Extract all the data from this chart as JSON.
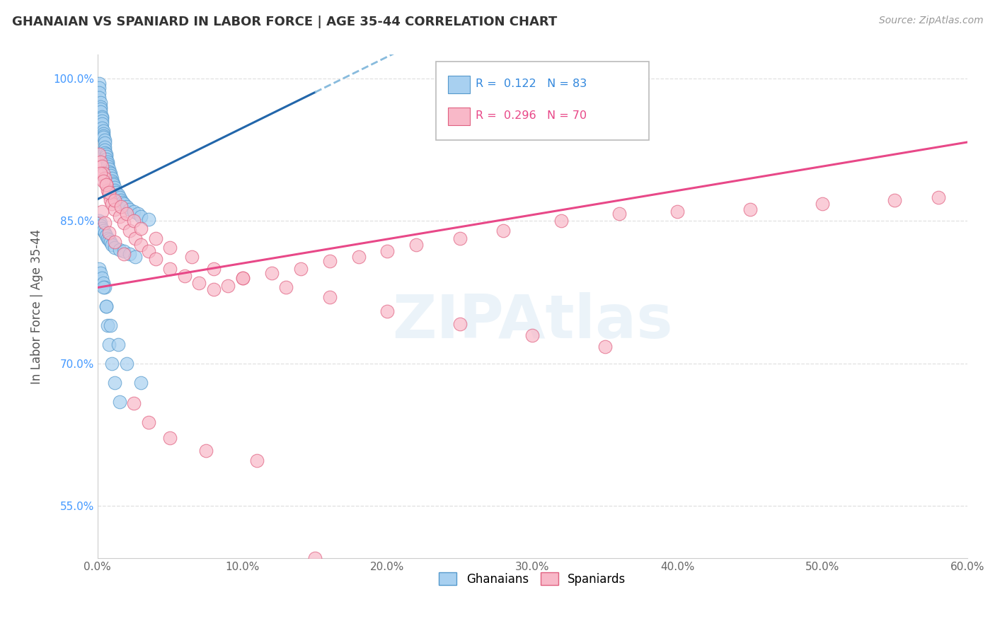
{
  "title": "GHANAIAN VS SPANIARD IN LABOR FORCE | AGE 35-44 CORRELATION CHART",
  "source": "Source: ZipAtlas.com",
  "ylabel_label": "In Labor Force | Age 35-44",
  "xlim": [
    0.0,
    0.6
  ],
  "ylim": [
    0.495,
    1.025
  ],
  "xtick_labels": [
    "0.0%",
    "10.0%",
    "20.0%",
    "30.0%",
    "40.0%",
    "50.0%",
    "60.0%"
  ],
  "xtick_vals": [
    0.0,
    0.1,
    0.2,
    0.3,
    0.4,
    0.5,
    0.6
  ],
  "ytick_labels": [
    "55.0%",
    "70.0%",
    "85.0%",
    "100.0%"
  ],
  "ytick_vals": [
    0.55,
    0.7,
    0.85,
    1.0
  ],
  "ghanaian_R": 0.122,
  "ghanaian_N": 83,
  "spaniard_R": 0.296,
  "spaniard_N": 70,
  "blue_color": "#a8d0f0",
  "pink_color": "#f8b8c8",
  "blue_edge_color": "#5599cc",
  "pink_edge_color": "#e06080",
  "blue_line_color": "#2266aa",
  "pink_line_color": "#e84888",
  "blue_dash_color": "#88bbdd",
  "watermark": "ZIPAtlas",
  "ghanaian_x": [
    0.001,
    0.001,
    0.001,
    0.001,
    0.002,
    0.002,
    0.002,
    0.002,
    0.003,
    0.003,
    0.003,
    0.003,
    0.003,
    0.004,
    0.004,
    0.004,
    0.004,
    0.005,
    0.005,
    0.005,
    0.005,
    0.005,
    0.006,
    0.006,
    0.006,
    0.007,
    0.007,
    0.007,
    0.008,
    0.008,
    0.009,
    0.009,
    0.01,
    0.01,
    0.011,
    0.011,
    0.012,
    0.012,
    0.013,
    0.014,
    0.015,
    0.016,
    0.017,
    0.018,
    0.02,
    0.022,
    0.025,
    0.028,
    0.03,
    0.035,
    0.001,
    0.002,
    0.002,
    0.003,
    0.004,
    0.005,
    0.006,
    0.007,
    0.008,
    0.009,
    0.01,
    0.012,
    0.015,
    0.018,
    0.022,
    0.026,
    0.001,
    0.002,
    0.003,
    0.004,
    0.005,
    0.006,
    0.007,
    0.008,
    0.01,
    0.012,
    0.015,
    0.004,
    0.006,
    0.009,
    0.014,
    0.02,
    0.03
  ],
  "ghanaian_y": [
    0.995,
    0.99,
    0.985,
    0.98,
    0.975,
    0.97,
    0.968,
    0.965,
    0.96,
    0.958,
    0.955,
    0.952,
    0.948,
    0.945,
    0.942,
    0.94,
    0.938,
    0.935,
    0.932,
    0.928,
    0.925,
    0.922,
    0.92,
    0.918,
    0.915,
    0.912,
    0.91,
    0.908,
    0.905,
    0.902,
    0.9,
    0.898,
    0.895,
    0.892,
    0.89,
    0.888,
    0.885,
    0.882,
    0.88,
    0.878,
    0.875,
    0.872,
    0.87,
    0.868,
    0.865,
    0.862,
    0.86,
    0.858,
    0.855,
    0.852,
    0.85,
    0.848,
    0.845,
    0.842,
    0.84,
    0.838,
    0.835,
    0.832,
    0.83,
    0.828,
    0.825,
    0.822,
    0.82,
    0.818,
    0.815,
    0.812,
    0.8,
    0.795,
    0.79,
    0.785,
    0.78,
    0.76,
    0.74,
    0.72,
    0.7,
    0.68,
    0.66,
    0.78,
    0.76,
    0.74,
    0.72,
    0.7,
    0.68
  ],
  "spaniard_x": [
    0.001,
    0.002,
    0.003,
    0.004,
    0.005,
    0.006,
    0.007,
    0.008,
    0.009,
    0.01,
    0.012,
    0.015,
    0.018,
    0.022,
    0.026,
    0.03,
    0.035,
    0.04,
    0.05,
    0.06,
    0.07,
    0.08,
    0.09,
    0.1,
    0.12,
    0.14,
    0.16,
    0.18,
    0.2,
    0.22,
    0.25,
    0.28,
    0.32,
    0.36,
    0.4,
    0.45,
    0.5,
    0.55,
    0.58,
    0.002,
    0.004,
    0.006,
    0.008,
    0.012,
    0.016,
    0.02,
    0.025,
    0.03,
    0.04,
    0.05,
    0.065,
    0.08,
    0.1,
    0.13,
    0.16,
    0.2,
    0.25,
    0.3,
    0.35,
    0.003,
    0.005,
    0.008,
    0.012,
    0.018,
    0.025,
    0.035,
    0.05,
    0.075,
    0.11,
    0.15
  ],
  "spaniard_y": [
    0.92,
    0.912,
    0.908,
    0.9,
    0.895,
    0.888,
    0.882,
    0.878,
    0.872,
    0.868,
    0.862,
    0.855,
    0.848,
    0.84,
    0.832,
    0.825,
    0.818,
    0.81,
    0.8,
    0.792,
    0.785,
    0.778,
    0.782,
    0.79,
    0.795,
    0.8,
    0.808,
    0.812,
    0.818,
    0.825,
    0.832,
    0.84,
    0.85,
    0.858,
    0.86,
    0.862,
    0.868,
    0.872,
    0.875,
    0.9,
    0.892,
    0.888,
    0.88,
    0.872,
    0.865,
    0.858,
    0.85,
    0.842,
    0.832,
    0.822,
    0.812,
    0.8,
    0.79,
    0.78,
    0.77,
    0.755,
    0.742,
    0.73,
    0.718,
    0.86,
    0.848,
    0.838,
    0.828,
    0.815,
    0.658,
    0.638,
    0.622,
    0.608,
    0.598,
    0.495
  ],
  "grid_color": "#dddddd",
  "background_color": "#ffffff"
}
